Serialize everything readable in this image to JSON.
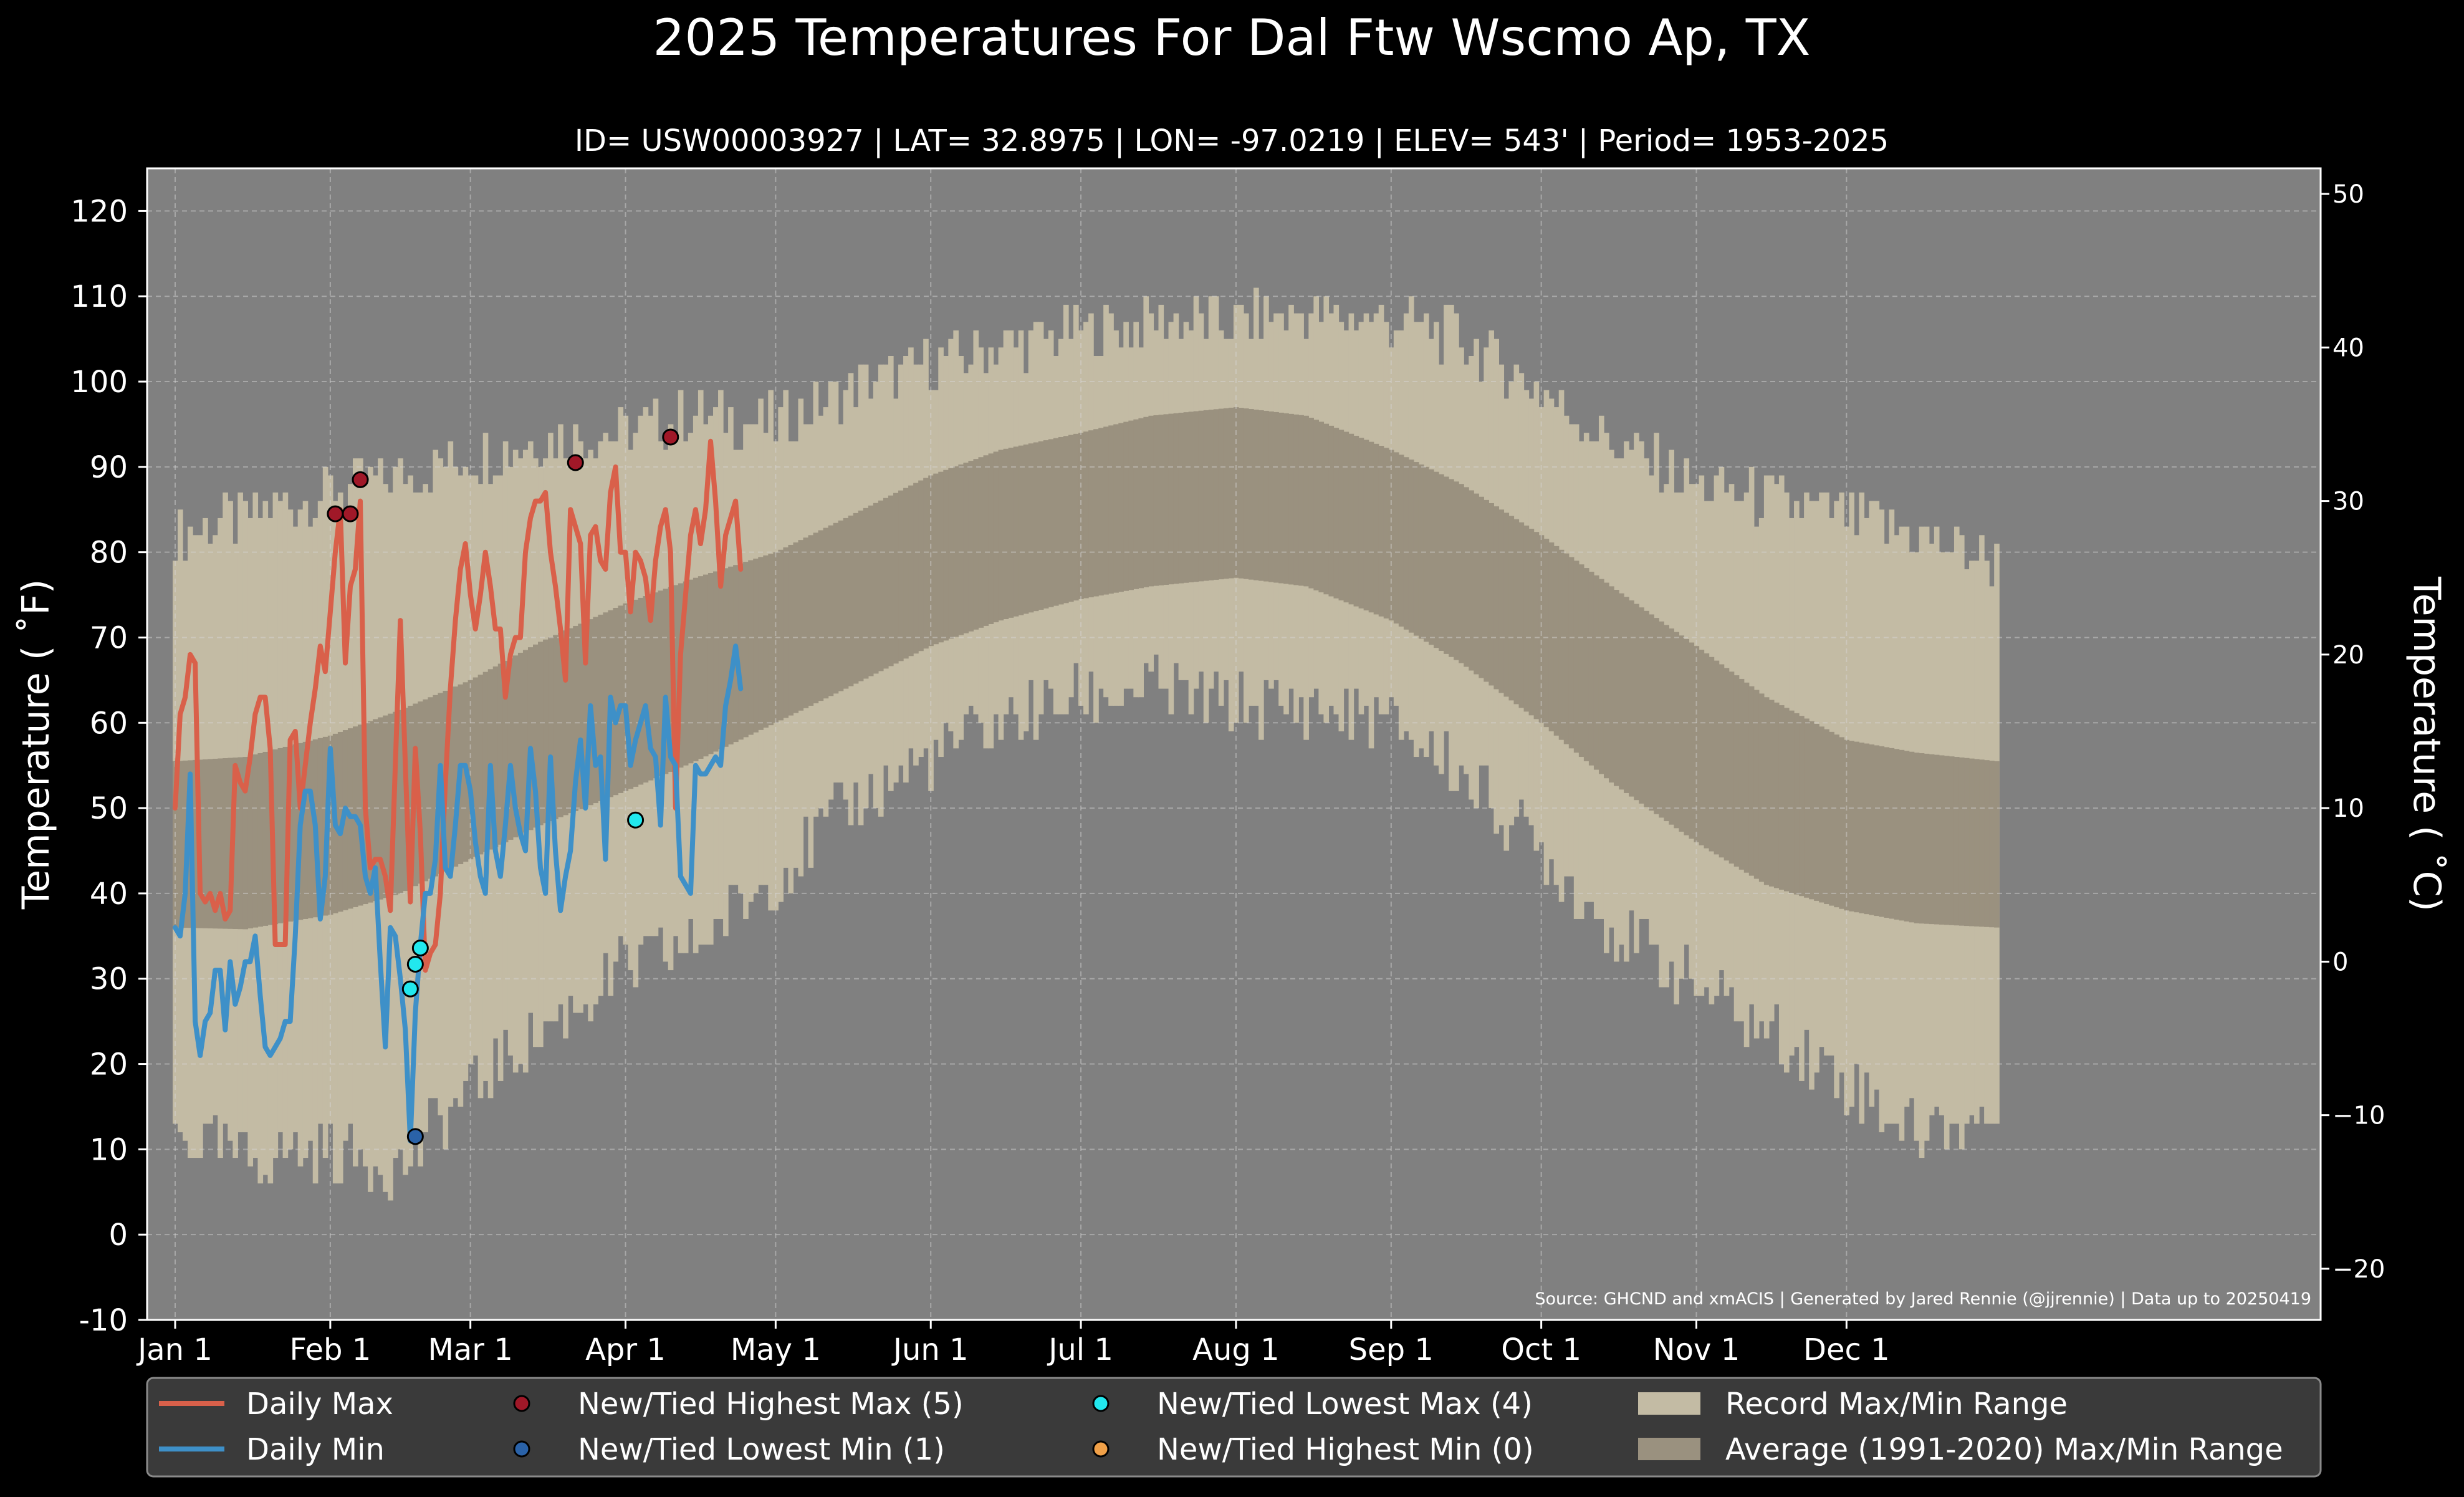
{
  "chart_data": {
    "type": "line",
    "title": "2025 Temperatures For Dal Ftw Wscmo Ap, TX",
    "subtitle": "ID= USW00003927 | LAT= 32.8975 | LON= -97.0219 | ELEV= 543' | Period= 1953-2025",
    "ylabel": "Temperature ( $^\\circ$F)",
    "ylabel_display": "Temperature ( ˚F)",
    "y2label_display": "Temperature ( ˚C)",
    "source": "Source: GHCND and xmACIS | Generated by Jared Rennie (@jjrennie) | Data up to 20250419",
    "xlim": [
      "2025-01-01",
      "2025-12-31"
    ],
    "ylim": [
      -10,
      125
    ],
    "y2lim_c": [
      -23.3,
      51.7
    ],
    "yticks": [
      -10,
      0,
      10,
      20,
      30,
      40,
      50,
      60,
      70,
      80,
      90,
      100,
      110,
      120
    ],
    "y2ticks": [
      -20,
      -10,
      0,
      10,
      20,
      30,
      40,
      50
    ],
    "xticks": [
      {
        "label": "Jan 1",
        "date": "2025-01-01"
      },
      {
        "label": "Feb 1",
        "date": "2025-02-01"
      },
      {
        "label": "Mar 1",
        "date": "2025-03-01"
      },
      {
        "label": "Apr 1",
        "date": "2025-04-01"
      },
      {
        "label": "May 1",
        "date": "2025-05-01"
      },
      {
        "label": "Jun 1",
        "date": "2025-06-01"
      },
      {
        "label": "Jul 1",
        "date": "2025-07-01"
      },
      {
        "label": "Aug 1",
        "date": "2025-08-01"
      },
      {
        "label": "Sep 1",
        "date": "2025-09-01"
      },
      {
        "label": "Oct 1",
        "date": "2025-10-01"
      },
      {
        "label": "Nov 1",
        "date": "2025-11-01"
      },
      {
        "label": "Dec 1",
        "date": "2025-12-01"
      }
    ],
    "grid": true,
    "legend_position": "bottom",
    "colors": {
      "background": "#000000",
      "plot_bg": "#808080",
      "record_range": "#c3bba4",
      "average_range": "#9a917f",
      "daily_max": "#d9604a",
      "daily_min": "#3e90c8",
      "highest_max": "#a01828",
      "lowest_min": "#2a62a8",
      "lowest_max": "#22e8ee",
      "highest_min": "#f0a048"
    },
    "record_range": {
      "name": "Record Max/Min Range",
      "max_anchors": [
        {
          "date": "2025-01-01",
          "value": 82
        },
        {
          "date": "2025-01-15",
          "value": 84
        },
        {
          "date": "2025-02-01",
          "value": 87
        },
        {
          "date": "2025-02-15",
          "value": 89
        },
        {
          "date": "2025-03-01",
          "value": 91
        },
        {
          "date": "2025-03-15",
          "value": 93
        },
        {
          "date": "2025-04-01",
          "value": 94
        },
        {
          "date": "2025-04-15",
          "value": 96
        },
        {
          "date": "2025-05-01",
          "value": 95
        },
        {
          "date": "2025-05-15",
          "value": 99
        },
        {
          "date": "2025-06-01",
          "value": 102
        },
        {
          "date": "2025-06-15",
          "value": 104
        },
        {
          "date": "2025-07-01",
          "value": 106
        },
        {
          "date": "2025-07-15",
          "value": 107
        },
        {
          "date": "2025-08-01",
          "value": 107
        },
        {
          "date": "2025-08-15",
          "value": 108
        },
        {
          "date": "2025-09-01",
          "value": 107
        },
        {
          "date": "2025-09-15",
          "value": 105
        },
        {
          "date": "2025-10-01",
          "value": 99
        },
        {
          "date": "2025-10-15",
          "value": 93
        },
        {
          "date": "2025-11-01",
          "value": 88
        },
        {
          "date": "2025-11-15",
          "value": 86
        },
        {
          "date": "2025-12-01",
          "value": 84
        },
        {
          "date": "2025-12-15",
          "value": 82
        },
        {
          "date": "2025-12-31",
          "value": 79
        }
      ],
      "min_anchors": [
        {
          "date": "2025-01-01",
          "value": 12
        },
        {
          "date": "2025-01-15",
          "value": 9
        },
        {
          "date": "2025-02-01",
          "value": 10
        },
        {
          "date": "2025-02-15",
          "value": 8
        },
        {
          "date": "2025-03-01",
          "value": 17
        },
        {
          "date": "2025-03-15",
          "value": 24
        },
        {
          "date": "2025-04-01",
          "value": 31
        },
        {
          "date": "2025-04-15",
          "value": 34
        },
        {
          "date": "2025-05-01",
          "value": 42
        },
        {
          "date": "2025-05-15",
          "value": 50
        },
        {
          "date": "2025-06-01",
          "value": 56
        },
        {
          "date": "2025-06-15",
          "value": 60
        },
        {
          "date": "2025-07-01",
          "value": 63
        },
        {
          "date": "2025-07-15",
          "value": 64
        },
        {
          "date": "2025-08-01",
          "value": 62
        },
        {
          "date": "2025-08-15",
          "value": 62
        },
        {
          "date": "2025-09-01",
          "value": 60
        },
        {
          "date": "2025-09-15",
          "value": 54
        },
        {
          "date": "2025-10-01",
          "value": 45
        },
        {
          "date": "2025-10-15",
          "value": 36
        },
        {
          "date": "2025-11-01",
          "value": 29
        },
        {
          "date": "2025-11-15",
          "value": 24
        },
        {
          "date": "2025-12-01",
          "value": 18
        },
        {
          "date": "2025-12-15",
          "value": 12
        },
        {
          "date": "2025-12-31",
          "value": 14
        }
      ]
    },
    "average_range": {
      "name": "Average (1991-2020) Max/Min Range",
      "max_anchors": [
        {
          "date": "2025-01-01",
          "value": 55.5
        },
        {
          "date": "2025-01-15",
          "value": 56
        },
        {
          "date": "2025-02-01",
          "value": 58.5
        },
        {
          "date": "2025-02-15",
          "value": 61.5
        },
        {
          "date": "2025-03-01",
          "value": 65
        },
        {
          "date": "2025-03-15",
          "value": 69.5
        },
        {
          "date": "2025-04-01",
          "value": 74
        },
        {
          "date": "2025-04-15",
          "value": 77
        },
        {
          "date": "2025-05-01",
          "value": 80
        },
        {
          "date": "2025-05-15",
          "value": 84
        },
        {
          "date": "2025-06-01",
          "value": 89
        },
        {
          "date": "2025-06-15",
          "value": 92
        },
        {
          "date": "2025-07-01",
          "value": 94
        },
        {
          "date": "2025-07-15",
          "value": 96
        },
        {
          "date": "2025-08-01",
          "value": 97
        },
        {
          "date": "2025-08-15",
          "value": 96
        },
        {
          "date": "2025-09-01",
          "value": 92
        },
        {
          "date": "2025-09-15",
          "value": 88
        },
        {
          "date": "2025-10-01",
          "value": 82
        },
        {
          "date": "2025-10-15",
          "value": 76
        },
        {
          "date": "2025-11-01",
          "value": 69
        },
        {
          "date": "2025-11-15",
          "value": 63
        },
        {
          "date": "2025-12-01",
          "value": 58
        },
        {
          "date": "2025-12-15",
          "value": 56.5
        },
        {
          "date": "2025-12-31",
          "value": 55.5
        }
      ],
      "min_anchors": [
        {
          "date": "2025-01-01",
          "value": 36
        },
        {
          "date": "2025-01-15",
          "value": 35.8
        },
        {
          "date": "2025-02-01",
          "value": 37.5
        },
        {
          "date": "2025-02-15",
          "value": 40
        },
        {
          "date": "2025-03-01",
          "value": 44
        },
        {
          "date": "2025-03-15",
          "value": 48
        },
        {
          "date": "2025-04-01",
          "value": 52
        },
        {
          "date": "2025-04-15",
          "value": 55.5
        },
        {
          "date": "2025-05-01",
          "value": 60
        },
        {
          "date": "2025-05-15",
          "value": 64
        },
        {
          "date": "2025-06-01",
          "value": 69
        },
        {
          "date": "2025-06-15",
          "value": 72
        },
        {
          "date": "2025-07-01",
          "value": 74.5
        },
        {
          "date": "2025-07-15",
          "value": 76
        },
        {
          "date": "2025-08-01",
          "value": 77
        },
        {
          "date": "2025-08-15",
          "value": 76
        },
        {
          "date": "2025-09-01",
          "value": 72
        },
        {
          "date": "2025-09-15",
          "value": 67
        },
        {
          "date": "2025-10-01",
          "value": 60
        },
        {
          "date": "2025-10-15",
          "value": 53
        },
        {
          "date": "2025-11-01",
          "value": 46
        },
        {
          "date": "2025-11-15",
          "value": 41
        },
        {
          "date": "2025-12-01",
          "value": 38
        },
        {
          "date": "2025-12-15",
          "value": 36.5
        },
        {
          "date": "2025-12-31",
          "value": 36
        }
      ]
    },
    "series": [
      {
        "name": "Daily Max",
        "start_date": "2025-01-01",
        "values": [
          50,
          61,
          63,
          68,
          67,
          40,
          39,
          40,
          38,
          40,
          37,
          38,
          55,
          53,
          52,
          56,
          61,
          63,
          63,
          57,
          34,
          34,
          34,
          58,
          59,
          50,
          55,
          60,
          64,
          69,
          66,
          73,
          80,
          85,
          67,
          76,
          78,
          86,
          50,
          43,
          44,
          44,
          42,
          38,
          55,
          72,
          55,
          39,
          57,
          47,
          31,
          33,
          34,
          40,
          53,
          64,
          72,
          78,
          81,
          75,
          71,
          75,
          80,
          76,
          71,
          71,
          63,
          68,
          70,
          70,
          80,
          84,
          86,
          86,
          87,
          80,
          76,
          71,
          65,
          85,
          83,
          81,
          67,
          82,
          83,
          79,
          78,
          87,
          90,
          80,
          80,
          73,
          80,
          79,
          77,
          72,
          79,
          83,
          85,
          80,
          50,
          68,
          75,
          82,
          85,
          81,
          85,
          93,
          86,
          76,
          82,
          84,
          86,
          78
        ]
      },
      {
        "name": "Daily Min",
        "start_date": "2025-01-01",
        "values": [
          36,
          35,
          40,
          54,
          25,
          21,
          25,
          26,
          31,
          31,
          24,
          32,
          27,
          29,
          32,
          32,
          35,
          28,
          22,
          21,
          22,
          23,
          25,
          25,
          35,
          48,
          52,
          52,
          48,
          37,
          42,
          57,
          48,
          47,
          50,
          49,
          49,
          48,
          42,
          40,
          43,
          32,
          22,
          36,
          35,
          30,
          24,
          11,
          26,
          34,
          40,
          40,
          44,
          55,
          43,
          42,
          48,
          55,
          55,
          52,
          46,
          42,
          40,
          55,
          45,
          42,
          48,
          55,
          50,
          47,
          45,
          57,
          52,
          43,
          40,
          56,
          45,
          38,
          42,
          45,
          53,
          58,
          50,
          62,
          55,
          56,
          44,
          63,
          60,
          62,
          62,
          55,
          58,
          60,
          62,
          57,
          56,
          48,
          63,
          56,
          55,
          42,
          41,
          40,
          55,
          54,
          54,
          55,
          56,
          55,
          62,
          65,
          69,
          64
        ]
      }
    ],
    "markers": [
      {
        "name": "New/Tied Highest Max",
        "count": 5,
        "points": [
          {
            "date": "2025-02-02",
            "value": 84.5
          },
          {
            "date": "2025-02-05",
            "value": 84.5
          },
          {
            "date": "2025-02-07",
            "value": 88.5
          },
          {
            "date": "2025-03-22",
            "value": 90.5
          },
          {
            "date": "2025-04-10",
            "value": 93.5
          }
        ]
      },
      {
        "name": "New/Tied Lowest Min",
        "count": 1,
        "points": [
          {
            "date": "2025-02-18",
            "value": 11.5
          }
        ]
      },
      {
        "name": "New/Tied Lowest Max",
        "count": 4,
        "points": [
          {
            "date": "2025-02-17",
            "value": 28.8
          },
          {
            "date": "2025-02-18",
            "value": 31.7
          },
          {
            "date": "2025-02-19",
            "value": 33.6
          },
          {
            "date": "2025-04-03",
            "value": 48.6
          }
        ]
      },
      {
        "name": "New/Tied Highest Min",
        "count": 0,
        "points": []
      }
    ],
    "legend": [
      {
        "key": "daily_max",
        "label": "Daily Max",
        "kind": "line"
      },
      {
        "key": "highest_max",
        "label": "New/Tied Highest Max (5)",
        "kind": "dot"
      },
      {
        "key": "lowest_max",
        "label": "New/Tied Lowest Max (4)",
        "kind": "dot"
      },
      {
        "key": "record_range",
        "label": "Record Max/Min Range",
        "kind": "patch"
      },
      {
        "key": "daily_min",
        "label": "Daily Min",
        "kind": "line"
      },
      {
        "key": "lowest_min",
        "label": "New/Tied Lowest Min (1)",
        "kind": "dot"
      },
      {
        "key": "highest_min",
        "label": "New/Tied Highest Min (0)",
        "kind": "dot"
      },
      {
        "key": "average_range",
        "label": "Average (1991-2020) Max/Min Range",
        "kind": "patch"
      }
    ]
  }
}
